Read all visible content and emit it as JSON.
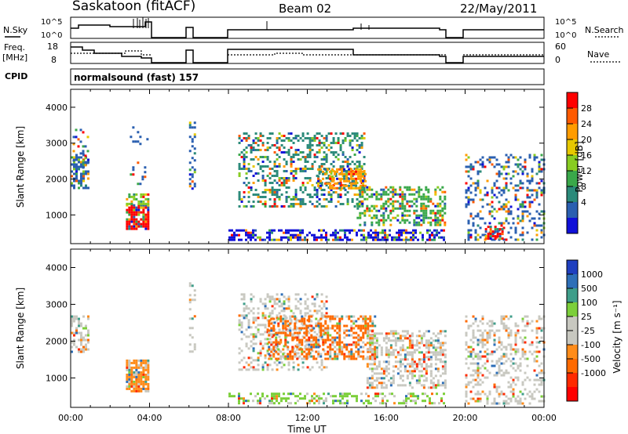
{
  "header": {
    "station": "Saskatoon (fitACF)",
    "beam": "Beam 02",
    "date": "22/May/2011"
  },
  "strips": {
    "nsky_label": "N.Sky",
    "nsky_ticks": [
      "10^5",
      "10^0"
    ],
    "nsearch_label": "N.Search",
    "nsearch_ticks": [
      "10^5",
      "10^0"
    ],
    "freq_label_1": "Freq.",
    "freq_label_2": "[MHz]",
    "freq_ticks": [
      "18",
      "8"
    ],
    "nave_label": "Nave",
    "nave_ticks": [
      "60",
      "0"
    ],
    "cpid_label": "CPID",
    "cpid_value": "normalsound (fast) 157"
  },
  "chart_data": [
    {
      "type": "heatmap",
      "name": "power",
      "ylabel": "Slant Range [km]",
      "ylim": [
        200,
        4500
      ],
      "yticks": [
        "4000",
        "3000",
        "2000",
        "1000"
      ],
      "yvals": [
        4000,
        3000,
        2000,
        1000
      ],
      "xlim": [
        0,
        24
      ],
      "colorbar": {
        "label": "Power [dB]",
        "ticks": [
          "28",
          "24",
          "20",
          "16",
          "12",
          "8",
          "4"
        ],
        "colors": [
          "#ff0000",
          "#ff5a00",
          "#ff9c00",
          "#e6c800",
          "#88cc22",
          "#3aa84a",
          "#2b8a7a",
          "#2a5fb0",
          "#1010d8"
        ]
      },
      "features": [
        {
          "t0": 0.0,
          "t1": 1.1,
          "r0": 1700,
          "r1": 3400
        },
        {
          "t0": 2.8,
          "t1": 4.0,
          "r0": 600,
          "r1": 1600
        },
        {
          "t0": 6.0,
          "t1": 6.3,
          "r0": 1700,
          "r1": 3600
        },
        {
          "t0": 8.0,
          "t1": 19.0,
          "r0": 300,
          "r1": 3300
        },
        {
          "t0": 20.0,
          "t1": 24.0,
          "r0": 300,
          "r1": 2800
        }
      ]
    },
    {
      "type": "heatmap",
      "name": "velocity",
      "ylabel": "Slant Range [km]",
      "ylim": [
        200,
        4500
      ],
      "yticks": [
        "4000",
        "3000",
        "2000",
        "1000"
      ],
      "yvals": [
        4000,
        3000,
        2000,
        1000
      ],
      "xlim": [
        0,
        24
      ],
      "xticks": [
        "00:00",
        "04:00",
        "08:00",
        "12:00",
        "16:00",
        "20:00",
        "00:00"
      ],
      "xvals": [
        0,
        4,
        8,
        12,
        16,
        20,
        24
      ],
      "xlabel": "Time UT",
      "colorbar": {
        "label": "Velocity [m s⁻¹]",
        "ticks": [
          "1000",
          "500",
          "100",
          "25",
          "-25",
          "-100",
          "-500",
          "-1000"
        ],
        "colors": [
          "#1f3fbf",
          "#2e6fb8",
          "#3f9e8a",
          "#7ccf3a",
          "#c8c8c0",
          "#c8c8c0",
          "#ff8c1a",
          "#ff6a00",
          "#ff2a00",
          "#ff0000"
        ]
      }
    }
  ]
}
